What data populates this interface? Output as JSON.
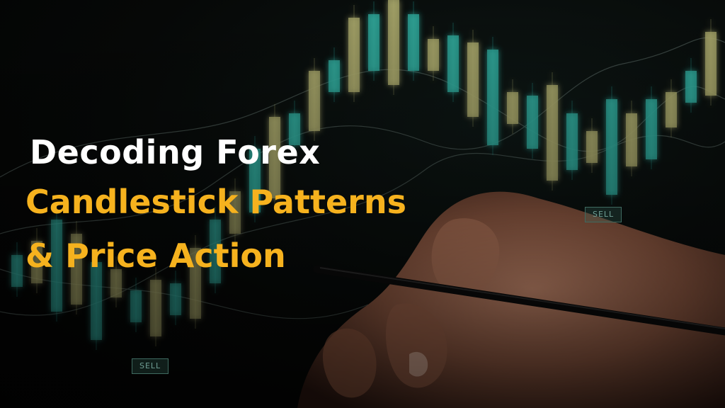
{
  "headline": {
    "line1": "Decoding Forex",
    "line2": "Candlestick Patterns",
    "line3": "& Price Action"
  },
  "markers": {
    "sell_left": "SELL",
    "sell_right": "SELL"
  },
  "colors": {
    "headline_white": "#ffffff",
    "headline_accent": "#f6b21e",
    "candle_teal": "#2fa79a",
    "candle_olive": "#a7a56a"
  }
}
